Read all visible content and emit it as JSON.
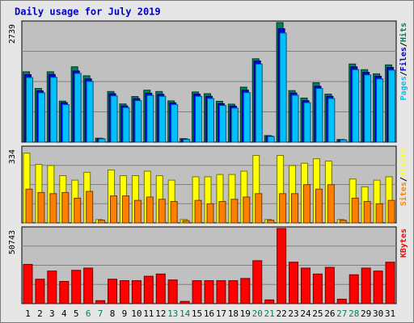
{
  "chart_data": {
    "type": "bar",
    "title": "Daily usage for July 2019",
    "categories": [
      "1",
      "2",
      "3",
      "4",
      "5",
      "6",
      "7",
      "8",
      "9",
      "10",
      "11",
      "12",
      "13",
      "14",
      "15",
      "16",
      "17",
      "18",
      "19",
      "20",
      "21",
      "22",
      "23",
      "24",
      "25",
      "26",
      "27",
      "28",
      "29",
      "30",
      "31"
    ],
    "weekend_days": [
      "6",
      "7",
      "13",
      "14",
      "20",
      "21",
      "27",
      "28"
    ],
    "panels": [
      {
        "id": "top",
        "max_label": "2739",
        "ylim": [
          0,
          2739
        ],
        "right_label": [
          "Pages",
          "/",
          "Files",
          "/",
          "Hits"
        ],
        "series": [
          {
            "name": "Hits",
            "values": [
              1612,
              1230,
              1612,
              940,
              1726,
              1520,
              90,
              1160,
              875,
              1045,
              1190,
              1160,
              945,
              80,
              1150,
              1110,
              935,
              870,
              1260,
              1910,
              150,
              2739,
              1180,
              1010,
              1360,
              1100,
              60,
              1790,
              1660,
              1565,
              1770
            ]
          },
          {
            "name": "Files",
            "values": [
              1545,
              1175,
              1550,
              905,
              1630,
              1450,
              82,
              1110,
              830,
              995,
              1120,
              1095,
              900,
              70,
              1100,
              1050,
              880,
              825,
              1190,
              1860,
              140,
              2600,
              1125,
              950,
              1280,
              1050,
              55,
              1725,
              1600,
              1510,
              1710
            ]
          },
          {
            "name": "Pages",
            "values": [
              1480,
              1130,
              1485,
              860,
              1575,
              1390,
              75,
              1060,
              790,
              950,
              1070,
              1050,
              860,
              62,
              1050,
              1000,
              840,
              780,
              1135,
              1790,
              130,
              2500,
              1075,
              905,
              1230,
              1000,
              50,
              1660,
              1540,
              1450,
              1650
            ]
          }
        ]
      },
      {
        "id": "middle",
        "max_label": "334",
        "ylim": [
          0,
          334
        ],
        "right_label": [
          "Sites",
          "/",
          "Visits"
        ],
        "series": [
          {
            "name": "Visits",
            "values": [
              310,
              260,
              255,
              210,
              190,
              225,
              15,
              235,
              210,
              210,
              230,
              210,
              190,
              15,
              205,
              205,
              215,
              215,
              230,
              300,
              15,
              300,
              255,
              265,
              285,
              275,
              15,
              195,
              160,
              190,
              205
            ]
          },
          {
            "name": "Sites",
            "values": [
              150,
              135,
              130,
              135,
              110,
              140,
              12,
              120,
              120,
              100,
              115,
              105,
              95,
              10,
              100,
              85,
              95,
              105,
              115,
              130,
              12,
              130,
              130,
              170,
              150,
              170,
              12,
              110,
              95,
              85,
              100
            ]
          }
        ]
      },
      {
        "id": "bottom",
        "max_label": "50743",
        "ylim": [
          0,
          50743
        ],
        "right_label": [
          "KBytes"
        ],
        "series": [
          {
            "name": "KBytes",
            "values": [
              26500,
              16500,
              22000,
              15000,
              22500,
              24000,
              2000,
              16500,
              15500,
              15500,
              18500,
              20000,
              16000,
              1500,
              15500,
              15500,
              15500,
              15500,
              17000,
              29000,
              2500,
              50743,
              28000,
              24000,
              20000,
              24500,
              3000,
              19500,
              24000,
              22000,
              28000
            ]
          }
        ]
      }
    ],
    "colors": {
      "background": "#c0c0c0",
      "outer": "#e6e6e6",
      "title": "#0000cc",
      "hits": "#00805c",
      "files": "#0000e6",
      "pages": "#00c0ff",
      "visits": "#ffff00",
      "sites": "#ff8000",
      "kbytes": "#ff0000",
      "weekday_label": "#000000",
      "weekend_label": "#00805c",
      "slash": "#000000"
    }
  }
}
